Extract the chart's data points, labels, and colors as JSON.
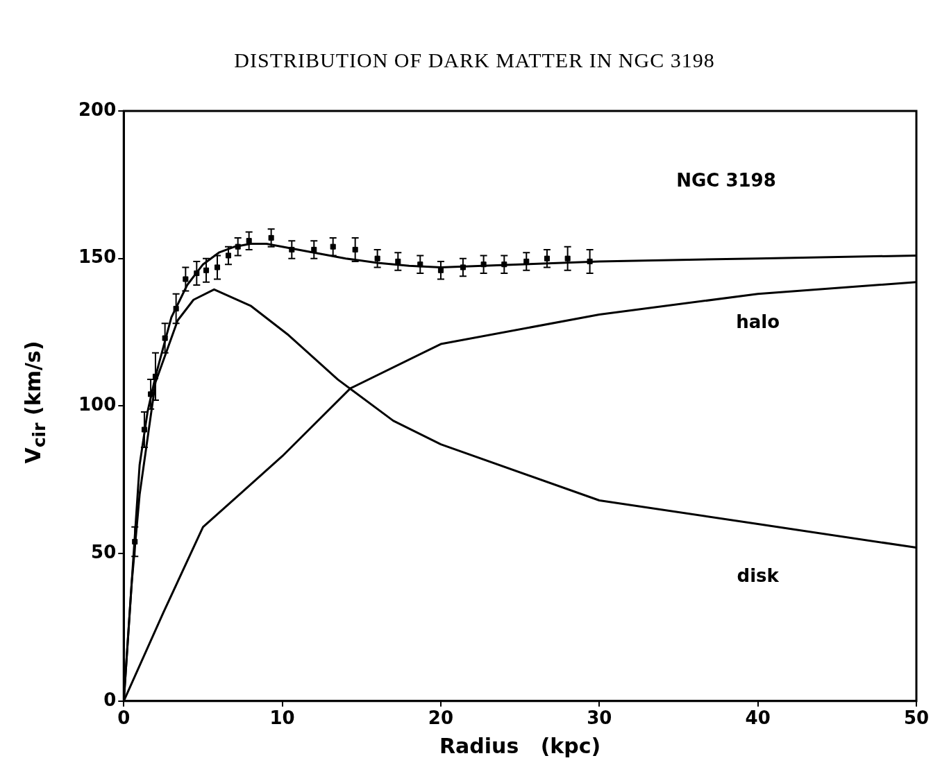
{
  "chart_data": {
    "type": "scatter",
    "title": "DISTRIBUTION OF DARK MATTER IN NGC 3198",
    "xlabel": "Radius   (kpc)",
    "ylabel": "V$_{cir}$ (km/s)",
    "xlim": [
      0,
      50
    ],
    "xticks": [
      0,
      10,
      20,
      30,
      40,
      50
    ],
    "ylim": [
      0,
      200
    ],
    "yticks": [
      0,
      50,
      100,
      150,
      200
    ],
    "grid": false,
    "legend": false,
    "annotations": [
      "NGC 3198",
      "halo",
      "disk"
    ],
    "series": [
      {
        "marker": "square",
        "color": "#000000",
        "x": [
          0.7,
          1.3,
          1.7,
          2.0,
          2.6,
          3.3,
          3.9,
          4.6,
          5.2,
          5.9,
          6.6,
          7.2,
          7.9,
          9.3,
          10.6,
          12.0,
          13.2,
          14.6,
          16.0,
          17.3,
          18.7,
          20.0,
          21.4,
          22.7,
          24.0,
          25.4,
          26.7,
          28.0,
          29.4
        ],
        "values": [
          54,
          92,
          104,
          110,
          123,
          133,
          143,
          145,
          146,
          147,
          151,
          154,
          156,
          157,
          153,
          153,
          154,
          153,
          150,
          149,
          148,
          146,
          147,
          148,
          148,
          149,
          150,
          150,
          149
        ],
        "errors": [
          5,
          6,
          5,
          8,
          5,
          5,
          4,
          4,
          4,
          4,
          3,
          3,
          3,
          3,
          3,
          3,
          3,
          4,
          3,
          3,
          3,
          3,
          3,
          3,
          3,
          3,
          3,
          4,
          4
        ]
      },
      {
        "type": "line",
        "marker": "none",
        "color": "#000000",
        "x": [
          0,
          0.5,
          1,
          1.5,
          2,
          3,
          4,
          5,
          6,
          7,
          8,
          9,
          10,
          12,
          14,
          16,
          18,
          20,
          25,
          30,
          40,
          50
        ],
        "values": [
          0,
          40,
          80,
          98,
          110,
          130,
          141,
          148,
          152,
          154,
          155,
          155,
          154,
          152,
          150,
          148.5,
          147.5,
          147,
          148,
          149,
          150,
          151
        ]
      },
      {
        "type": "line",
        "marker": "none",
        "color": "#000000",
        "x": [
          0,
          0.5,
          1,
          2,
          3.4,
          4.4,
          5.7,
          8,
          10.4,
          13.5,
          17,
          20,
          30,
          40,
          50
        ],
        "values": [
          0,
          40,
          70,
          108,
          129,
          136,
          139.5,
          134,
          124,
          109,
          95,
          87,
          68,
          60,
          52
        ]
      },
      {
        "type": "line",
        "marker": "none",
        "color": "#000000",
        "x": [
          0,
          2.5,
          5,
          7.5,
          10,
          14.3,
          20,
          30,
          40,
          50
        ],
        "values": [
          0,
          30,
          59,
          71,
          83,
          106,
          121,
          131,
          138,
          142
        ]
      }
    ]
  }
}
